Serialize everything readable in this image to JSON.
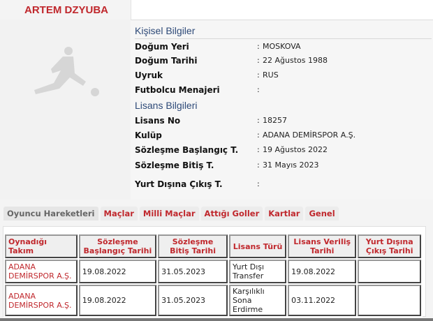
{
  "player": {
    "name": "ARTEM DZYUBA"
  },
  "personal": {
    "title": "Kişisel Bilgiler",
    "rows": [
      {
        "label": "Doğum Yeri",
        "value": "MOSKOVA"
      },
      {
        "label": "Doğum Tarihi",
        "value": "22 Ağustos 1988"
      },
      {
        "label": "Uyruk",
        "value": "RUS"
      },
      {
        "label": "Futbolcu Menajeri",
        "value": ""
      }
    ]
  },
  "license": {
    "title": "Lisans Bilgileri",
    "rows": [
      {
        "label": "Lisans No",
        "value": "18257"
      },
      {
        "label": "Kulüp",
        "value": "ADANA DEMİRSPOR A.Ş."
      },
      {
        "label": "Sözleşme Başlangıç T.",
        "value": "19 Ağustos 2022"
      },
      {
        "label": "Sözleşme Bitiş T.",
        "value": "31 Mayıs 2023"
      },
      {
        "label": "Yurt Dışına Çıkış T.",
        "value": ""
      }
    ]
  },
  "colon": ":",
  "tabs": [
    {
      "label": "Oyuncu Hareketleri",
      "active": true
    },
    {
      "label": "Maçlar"
    },
    {
      "label": "Milli Maçlar"
    },
    {
      "label": "Attığı Goller"
    },
    {
      "label": "Kartlar"
    },
    {
      "label": "Genel"
    }
  ],
  "table": {
    "headers": [
      "Oynadığı Takım",
      "Sözleşme Başlangıç Tarihi",
      "Sözleşme Bitiş Tarihi",
      "Lisans Türü",
      "Lisans Veriliş Tarihi",
      "Yurt Dışına Çıkış Tarihi"
    ],
    "rows": [
      [
        "ADANA DEMİRSPOR A.Ş.",
        "19.08.2022",
        "31.05.2023",
        "Yurt Dışı Transfer",
        "19.08.2022",
        ""
      ],
      [
        "ADANA DEMİRSPOR A.Ş.",
        "19.08.2022",
        "31.05.2023",
        "Karşılıklı Sona Erdirme",
        "03.11.2022",
        ""
      ]
    ]
  }
}
